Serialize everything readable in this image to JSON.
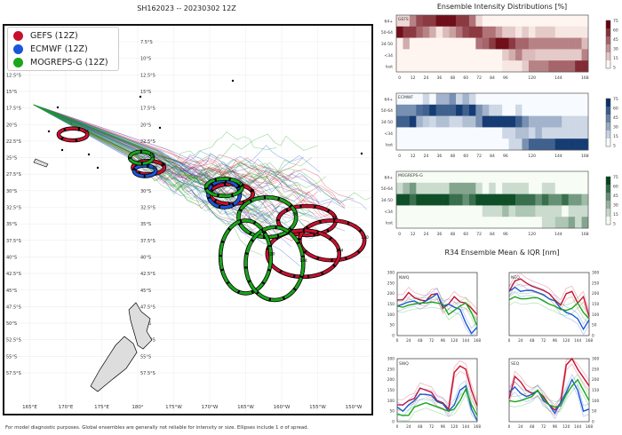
{
  "title": "SH162023 -- 20230302 12Z",
  "footer": "For model diagnostic purposes. Global ensembles are generally not reliable for intensity or size. Ellipses include 1 σ of spread.",
  "map": {
    "legend": [
      {
        "label": "GEFS (12Z)",
        "color": "#c8102e"
      },
      {
        "label": "ECMWF (12Z)",
        "color": "#1a56db"
      },
      {
        "label": "MOGREPS-G (12Z)",
        "color": "#1aa51a"
      }
    ],
    "lat_labels": [
      "7.5°S",
      "10°S",
      "12.5°S",
      "15°S",
      "17.5°S",
      "20°S",
      "22.5°S",
      "25°S",
      "27.5°S",
      "30°S",
      "32.5°S",
      "35°S",
      "37.5°S",
      "40°S",
      "42.5°S",
      "45°S",
      "47.5°S",
      "50°S",
      "52.5°S",
      "55°S",
      "57.5°S"
    ],
    "lat_values": [
      7.5,
      10,
      12.5,
      15,
      17.5,
      20,
      22.5,
      25,
      27.5,
      30,
      32.5,
      35,
      37.5,
      40,
      42.5,
      45,
      47.5,
      50,
      52.5,
      55,
      57.5
    ],
    "lon_labels": [
      "165°E",
      "170°E",
      "175°E",
      "180°",
      "175°W",
      "170°W",
      "165°W",
      "160°W",
      "155°W",
      "150°W"
    ],
    "lon_values": [
      165,
      170,
      175,
      180,
      185,
      190,
      195,
      200,
      205,
      210
    ],
    "track_start": {
      "lon": 165.5,
      "lat": 17
    },
    "ellipses": [
      {
        "model": "GEFS",
        "hour": "24",
        "lon": 171,
        "lat": 21.5,
        "rx": 2.0,
        "ry": 0.9
      },
      {
        "model": "GEFS",
        "hour": "48",
        "lon": 181.5,
        "lat": 26.5,
        "rx": 2.2,
        "ry": 1.0
      },
      {
        "model": "GEFS",
        "hour": "72",
        "lon": 193,
        "lat": 30.5,
        "rx": 3.0,
        "ry": 1.5
      },
      {
        "model": "GEFS",
        "hour": "96",
        "lon": 203.5,
        "lat": 34.5,
        "rx": 4.0,
        "ry": 2.2
      },
      {
        "model": "GEFS",
        "hour": "120",
        "lon": 207,
        "lat": 37.5,
        "rx": 4.5,
        "ry": 3.0
      },
      {
        "model": "GEFS",
        "hour": "144",
        "lon": 203,
        "lat": 39.5,
        "rx": 5.0,
        "ry": 3.5
      },
      {
        "model": "ECMWF",
        "hour": "48",
        "lon": 181,
        "lat": 27,
        "rx": 1.5,
        "ry": 0.8
      },
      {
        "model": "ECMWF",
        "hour": "72",
        "lon": 192,
        "lat": 30.5,
        "rx": 2.2,
        "ry": 2.0
      },
      {
        "model": "MOGREPS-G",
        "hour": "48",
        "lon": 180.5,
        "lat": 25,
        "rx": 1.6,
        "ry": 0.9
      },
      {
        "model": "MOGREPS-G",
        "hour": "72",
        "lon": 192,
        "lat": 29.5,
        "rx": 2.5,
        "ry": 1.3
      },
      {
        "model": "MOGREPS-G",
        "hour": "96",
        "lon": 198,
        "lat": 34,
        "rx": 4.0,
        "ry": 3.0
      },
      {
        "model": "MOGREPS-G",
        "hour": "120",
        "lon": 195,
        "lat": 40,
        "rx": 3.5,
        "ry": 5.5
      },
      {
        "model": "MOGREPS-G",
        "hour": "144",
        "lon": 199,
        "lat": 41,
        "rx": 4.0,
        "ry": 5.5
      }
    ]
  },
  "chart_data": [
    {
      "type": "heatmap",
      "title": "Ensemble Intensity Distributions [%]",
      "panel": "GEFS",
      "cmap": "Reds",
      "rows": [
        "64+",
        "50-64",
        "34-50",
        "<34",
        "lost"
      ],
      "x": [
        0,
        6,
        12,
        18,
        24,
        30,
        36,
        42,
        48,
        54,
        60,
        66,
        72,
        78,
        84,
        90,
        96,
        102,
        108,
        114,
        120,
        126,
        132,
        138,
        144,
        150,
        156,
        162,
        168
      ],
      "x_ticks": [
        "0",
        "12",
        "24",
        "36",
        "48",
        "60",
        "72",
        "84",
        "96",
        "120",
        "144",
        "168"
      ],
      "colorbar_ticks": [
        "75",
        "60",
        "45",
        "30",
        "15",
        "5"
      ],
      "values": [
        [
          10,
          10,
          40,
          60,
          65,
          65,
          80,
          80,
          80,
          65,
          65,
          45,
          10,
          0,
          0,
          0,
          0,
          0,
          0,
          0,
          0,
          0,
          0,
          0,
          0,
          0,
          0,
          0,
          0
        ],
        [
          80,
          65,
          65,
          50,
          40,
          25,
          5,
          20,
          30,
          45,
          60,
          65,
          65,
          45,
          45,
          30,
          15,
          15,
          5,
          15,
          5,
          15,
          15,
          15,
          5,
          5,
          5,
          5,
          5
        ],
        [
          0,
          25,
          0,
          0,
          0,
          0,
          0,
          0,
          0,
          0,
          0,
          0,
          45,
          50,
          65,
          80,
          80,
          65,
          50,
          50,
          40,
          40,
          40,
          40,
          40,
          40,
          40,
          40,
          20
        ],
        [
          0,
          0,
          0,
          0,
          0,
          0,
          0,
          0,
          0,
          0,
          0,
          0,
          0,
          0,
          0,
          0,
          15,
          25,
          40,
          20,
          20,
          15,
          15,
          15,
          15,
          15,
          15,
          15,
          40
        ],
        [
          0,
          0,
          0,
          0,
          0,
          0,
          0,
          0,
          0,
          0,
          0,
          0,
          0,
          0,
          0,
          0,
          5,
          5,
          5,
          15,
          40,
          40,
          40,
          50,
          50,
          50,
          50,
          70,
          70
        ]
      ]
    },
    {
      "type": "heatmap",
      "panel": "ECMWF",
      "cmap": "Blues",
      "rows": [
        "64+",
        "50-64",
        "34-50",
        "<34",
        "lost"
      ],
      "x": [
        0,
        6,
        12,
        18,
        24,
        30,
        36,
        42,
        48,
        54,
        60,
        66,
        72,
        78,
        84,
        90,
        96,
        102,
        108,
        114,
        120,
        126,
        132,
        138,
        144,
        150,
        156,
        162,
        168
      ],
      "x_ticks": [
        "0",
        "12",
        "24",
        "36",
        "48",
        "60",
        "72",
        "84",
        "96",
        "120",
        "144",
        "168"
      ],
      "colorbar_ticks": [
        "75",
        "60",
        "45",
        "30",
        "15",
        "5"
      ],
      "values": [
        [
          0,
          0,
          0,
          0,
          15,
          0,
          30,
          30,
          45,
          15,
          30,
          15,
          0,
          0,
          0,
          0,
          0,
          0,
          0,
          0,
          0,
          0,
          0,
          0,
          0,
          0,
          0,
          0,
          0
        ],
        [
          45,
          45,
          45,
          60,
          65,
          80,
          65,
          65,
          65,
          80,
          65,
          80,
          45,
          30,
          15,
          15,
          0,
          0,
          15,
          0,
          0,
          0,
          0,
          0,
          0,
          0,
          0,
          0,
          0
        ],
        [
          65,
          65,
          80,
          30,
          20,
          15,
          25,
          25,
          15,
          15,
          25,
          25,
          45,
          80,
          80,
          80,
          80,
          80,
          65,
          45,
          30,
          30,
          30,
          30,
          30,
          15,
          15,
          15,
          15
        ],
        [
          0,
          0,
          0,
          0,
          0,
          0,
          0,
          0,
          0,
          0,
          0,
          0,
          0,
          0,
          0,
          0,
          15,
          15,
          25,
          25,
          15,
          30,
          15,
          15,
          15,
          15,
          15,
          15,
          15
        ],
        [
          0,
          0,
          0,
          0,
          0,
          0,
          0,
          0,
          0,
          0,
          0,
          0,
          0,
          0,
          0,
          0,
          0,
          15,
          15,
          45,
          65,
          65,
          65,
          65,
          80,
          80,
          80,
          80,
          80
        ]
      ]
    },
    {
      "type": "heatmap",
      "panel": "MOGREPS-G",
      "cmap": "Greens",
      "rows": [
        "64+",
        "50-64",
        "34-50",
        "<34",
        "lost"
      ],
      "x": [
        0,
        6,
        12,
        18,
        24,
        30,
        36,
        42,
        48,
        54,
        60,
        66,
        72,
        78,
        84,
        90,
        96,
        102,
        108,
        114,
        120,
        126,
        132,
        138,
        144,
        150,
        156,
        162,
        168
      ],
      "x_ticks": [
        "0",
        "12",
        "24",
        "36",
        "48",
        "60",
        "72",
        "84",
        "96",
        "120",
        "144",
        "168"
      ],
      "colorbar_ticks": [
        "75",
        "60",
        "45",
        "30",
        "15",
        "5"
      ],
      "values": [
        [
          0,
          0,
          0,
          0,
          0,
          0,
          0,
          0,
          0,
          0,
          0,
          0,
          0,
          0,
          0,
          0,
          0,
          0,
          0,
          0,
          0,
          0,
          0,
          0,
          0,
          0,
          0,
          0,
          0
        ],
        [
          15,
          30,
          45,
          15,
          15,
          15,
          15,
          15,
          40,
          40,
          40,
          40,
          15,
          0,
          15,
          0,
          15,
          15,
          15,
          15,
          0,
          0,
          15,
          15,
          0,
          0,
          0,
          0,
          0
        ],
        [
          80,
          80,
          65,
          80,
          80,
          80,
          80,
          80,
          65,
          65,
          50,
          65,
          80,
          80,
          80,
          80,
          80,
          80,
          65,
          65,
          65,
          50,
          65,
          50,
          50,
          65,
          45,
          45,
          30
        ],
        [
          0,
          0,
          0,
          0,
          0,
          0,
          0,
          0,
          0,
          0,
          0,
          0,
          0,
          15,
          15,
          15,
          30,
          15,
          25,
          25,
          25,
          15,
          15,
          15,
          15,
          0,
          15,
          15,
          15
        ],
        [
          0,
          0,
          0,
          0,
          0,
          0,
          0,
          0,
          0,
          0,
          0,
          0,
          0,
          0,
          0,
          0,
          0,
          0,
          0,
          0,
          0,
          0,
          15,
          15,
          25,
          25,
          40,
          15,
          40
        ]
      ]
    },
    {
      "type": "line",
      "title": "R34 Ensemble Mean & IQR [nm]",
      "ylim": [
        0,
        300
      ],
      "xlim": [
        0,
        168
      ],
      "x": [
        0,
        12,
        24,
        36,
        48,
        60,
        72,
        84,
        96,
        108,
        120,
        132,
        144,
        156,
        168
      ],
      "x_ticks": [
        "0",
        "24",
        "48",
        "72",
        "96",
        "120",
        "144",
        "168"
      ],
      "y_ticks": [
        "0",
        "50",
        "100",
        "150",
        "200",
        "250",
        "300"
      ],
      "colors": {
        "GEFS": "#c8102e",
        "ECMWF": "#1a56db",
        "MOGREPS-G": "#1aa51a"
      },
      "panels": [
        {
          "name": "NWQ",
          "series": [
            {
              "model": "GEFS",
              "values": [
                170,
                170,
                205,
                180,
                170,
                165,
                195,
                200,
                130,
                150,
                185,
                160,
                155,
                130,
                100
              ]
            },
            {
              "model": "ECMWF",
              "values": [
                140,
                150,
                160,
                165,
                150,
                165,
                180,
                200,
                140,
                150,
                135,
                125,
                60,
                10,
                40
              ]
            },
            {
              "model": "MOGREPS-G",
              "values": [
                140,
                135,
                145,
                150,
                155,
                155,
                160,
                155,
                150,
                100,
                120,
                140,
                155,
                110,
                45
              ]
            }
          ]
        },
        {
          "name": "NEQ",
          "series": [
            {
              "model": "GEFS",
              "values": [
                210,
                260,
                270,
                250,
                235,
                225,
                215,
                200,
                170,
                145,
                200,
                210,
                155,
                185,
                90
              ]
            },
            {
              "model": "ECMWF",
              "values": [
                210,
                230,
                210,
                215,
                215,
                205,
                195,
                175,
                165,
                130,
                110,
                100,
                80,
                30,
                75
              ]
            },
            {
              "model": "MOGREPS-G",
              "values": [
                170,
                185,
                175,
                175,
                180,
                180,
                165,
                150,
                140,
                125,
                120,
                130,
                155,
                110,
                80
              ]
            }
          ]
        },
        {
          "name": "SWQ",
          "series": [
            {
              "model": "GEFS",
              "values": [
                80,
                80,
                100,
                110,
                160,
                150,
                140,
                100,
                90,
                60,
                235,
                265,
                250,
                150,
                75
              ]
            },
            {
              "model": "ECMWF",
              "values": [
                70,
                50,
                80,
                100,
                130,
                130,
                125,
                95,
                85,
                50,
                80,
                150,
                170,
                60,
                5
              ]
            },
            {
              "model": "MOGREPS-G",
              "values": [
                35,
                30,
                30,
                70,
                80,
                90,
                80,
                70,
                60,
                50,
                60,
                100,
                155,
                80,
                30
              ]
            }
          ]
        },
        {
          "name": "SEQ",
          "series": [
            {
              "model": "GEFS",
              "values": [
                110,
                215,
                190,
                150,
                135,
                145,
                120,
                80,
                55,
                90,
                270,
                300,
                250,
                210,
                170
              ]
            },
            {
              "model": "ECMWF",
              "values": [
                140,
                165,
                135,
                120,
                130,
                150,
                100,
                80,
                40,
                90,
                140,
                200,
                150,
                50,
                60
              ]
            },
            {
              "model": "MOGREPS-G",
              "values": [
                100,
                95,
                100,
                110,
                120,
                150,
                110,
                80,
                70,
                75,
                130,
                170,
                200,
                150,
                100
              ]
            }
          ]
        }
      ]
    }
  ]
}
